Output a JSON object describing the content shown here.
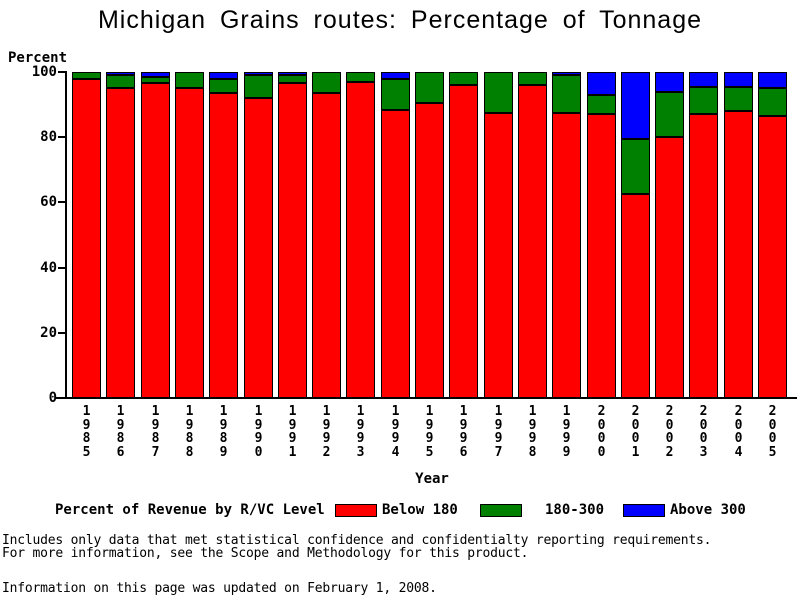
{
  "title": "Michigan Grains routes: Percentage of Tonnage",
  "chart_data": {
    "type": "bar",
    "stacked": true,
    "title": "Michigan Grains routes: Percentage of Tonnage",
    "ylabel": "Percent",
    "xlabel": "Year",
    "ylim": [
      0,
      100
    ],
    "yticks": [
      0,
      20,
      40,
      60,
      80,
      100
    ],
    "grid": false,
    "legend_title": "Percent of Revenue by R/VC Level",
    "legend_position": "bottom",
    "categories": [
      "1985",
      "1986",
      "1987",
      "1988",
      "1989",
      "1990",
      "1991",
      "1992",
      "1993",
      "1994",
      "1995",
      "1996",
      "1997",
      "1998",
      "1999",
      "2000",
      "2001",
      "2002",
      "2003",
      "2004",
      "2005"
    ],
    "series": [
      {
        "name": "Below 180",
        "color": "#ff0000",
        "values": [
          98,
          95,
          96.5,
          95,
          93.5,
          92,
          96.5,
          93.5,
          97,
          88.5,
          90.5,
          96,
          87.5,
          96,
          87.5,
          87,
          62.5,
          80,
          87,
          88,
          86.5
        ]
      },
      {
        "name": "180-300",
        "color": "#008000",
        "values": [
          2,
          4,
          2,
          5,
          4.5,
          7,
          2.5,
          6.5,
          3,
          9.5,
          9.5,
          4,
          12.5,
          4,
          11.5,
          6,
          17,
          14,
          8.5,
          7.5,
          8.5
        ]
      },
      {
        "name": "Above 300",
        "color": "#0000ff",
        "values": [
          0,
          1,
          1.5,
          0,
          2,
          1,
          1,
          0,
          0,
          2,
          0,
          0,
          0,
          0,
          1,
          7,
          20.5,
          6,
          4.5,
          4.5,
          5
        ]
      }
    ]
  },
  "footer": {
    "line1": "Includes only data that met statistical confidence and confidentialty reporting requirements.",
    "line2": "For more information, see the Scope and Methodology for this product.",
    "line3": "Information on this page was updated on February 1, 2008."
  }
}
